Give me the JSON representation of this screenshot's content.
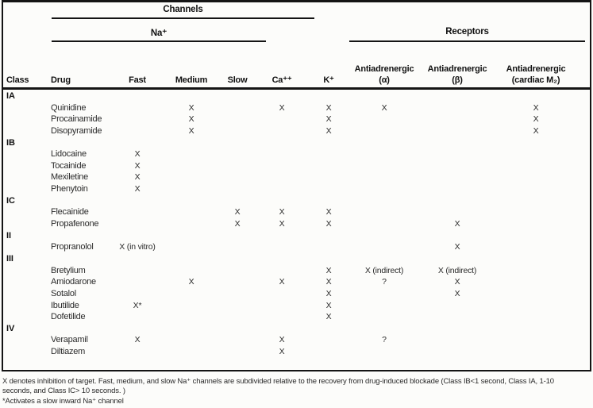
{
  "header": {
    "channels": "Channels",
    "na": "Na⁺",
    "receptors": "Receptors",
    "columns": {
      "class": "Class",
      "drug": "Drug",
      "fast": "Fast",
      "medium": "Medium",
      "slow": "Slow",
      "ca": "Ca⁺⁺",
      "k": "K⁺",
      "alpha_line1": "Antiadrenergic",
      "alpha_line2": "(α)",
      "beta_line1": "Antiadrenergic",
      "beta_line2": "(β)",
      "m2_line1": "Antiadrenergic",
      "m2_line2": "(cardiac M₂)"
    }
  },
  "table": {
    "columns_order": [
      "fast",
      "medium",
      "slow",
      "ca",
      "k",
      "alpha",
      "beta",
      "m2"
    ],
    "rows": [
      {
        "class": "IA"
      },
      {
        "drug": "Quinidine",
        "marks": [
          "",
          "X",
          "",
          "X",
          "X",
          "X",
          "",
          "X"
        ]
      },
      {
        "drug": "Procainamide",
        "marks": [
          "",
          "X",
          "",
          "",
          "X",
          "",
          "",
          "X"
        ]
      },
      {
        "drug": "Disopyramide",
        "marks": [
          "",
          "X",
          "",
          "",
          "X",
          "",
          "",
          "X"
        ]
      },
      {
        "class": "IB"
      },
      {
        "drug": "Lidocaine",
        "marks": [
          "X",
          "",
          "",
          "",
          "",
          "",
          "",
          ""
        ]
      },
      {
        "drug": "Tocainide",
        "marks": [
          "X",
          "",
          "",
          "",
          "",
          "",
          "",
          ""
        ]
      },
      {
        "drug": "Mexiletine",
        "marks": [
          "X",
          "",
          "",
          "",
          "",
          "",
          "",
          ""
        ]
      },
      {
        "drug": "Phenytoin",
        "marks": [
          "X",
          "",
          "",
          "",
          "",
          "",
          "",
          ""
        ]
      },
      {
        "class": "IC"
      },
      {
        "drug": "Flecainide",
        "marks": [
          "",
          "",
          "X",
          "X",
          "X",
          "",
          "",
          ""
        ]
      },
      {
        "drug": "Propafenone",
        "marks": [
          "",
          "",
          "X",
          "X",
          "X",
          "",
          "X",
          ""
        ]
      },
      {
        "class": "II"
      },
      {
        "drug": "Propranolol",
        "marks": [
          "X (in vitro)",
          "",
          "",
          "",
          "",
          "",
          "X",
          ""
        ]
      },
      {
        "class": "III"
      },
      {
        "drug": "Bretylium",
        "marks": [
          "",
          "",
          "",
          "",
          "X",
          "X (indirect)",
          "X (indirect)",
          ""
        ]
      },
      {
        "drug": "Amiodarone",
        "marks": [
          "",
          "X",
          "",
          "X",
          "X",
          "?",
          "X",
          ""
        ]
      },
      {
        "drug": "Sotalol",
        "marks": [
          "",
          "",
          "",
          "",
          "X",
          "",
          "X",
          ""
        ]
      },
      {
        "drug": "Ibutilide",
        "marks": [
          "X*",
          "",
          "",
          "",
          "X",
          "",
          "",
          ""
        ]
      },
      {
        "drug": "Dofetilide",
        "marks": [
          "",
          "",
          "",
          "",
          "X",
          "",
          "",
          ""
        ]
      },
      {
        "class": "IV"
      },
      {
        "drug": "Verapamil",
        "marks": [
          "X",
          "",
          "",
          "X",
          "",
          "?",
          "",
          ""
        ]
      },
      {
        "drug": "Diltiazem",
        "marks": [
          "",
          "",
          "",
          "X",
          "",
          "",
          "",
          ""
        ]
      }
    ]
  },
  "footnotes": {
    "lines": [
      "X denotes inhibition of target. Fast, medium, and slow Na⁺ channels are subdivided relative to the recovery from drug-induced blockade (Class IB<1 second, Class IA, 1-10",
      "seconds, and Class IC> 10 seconds. )",
      "*Activates a slow inward Na⁺ channel"
    ]
  }
}
